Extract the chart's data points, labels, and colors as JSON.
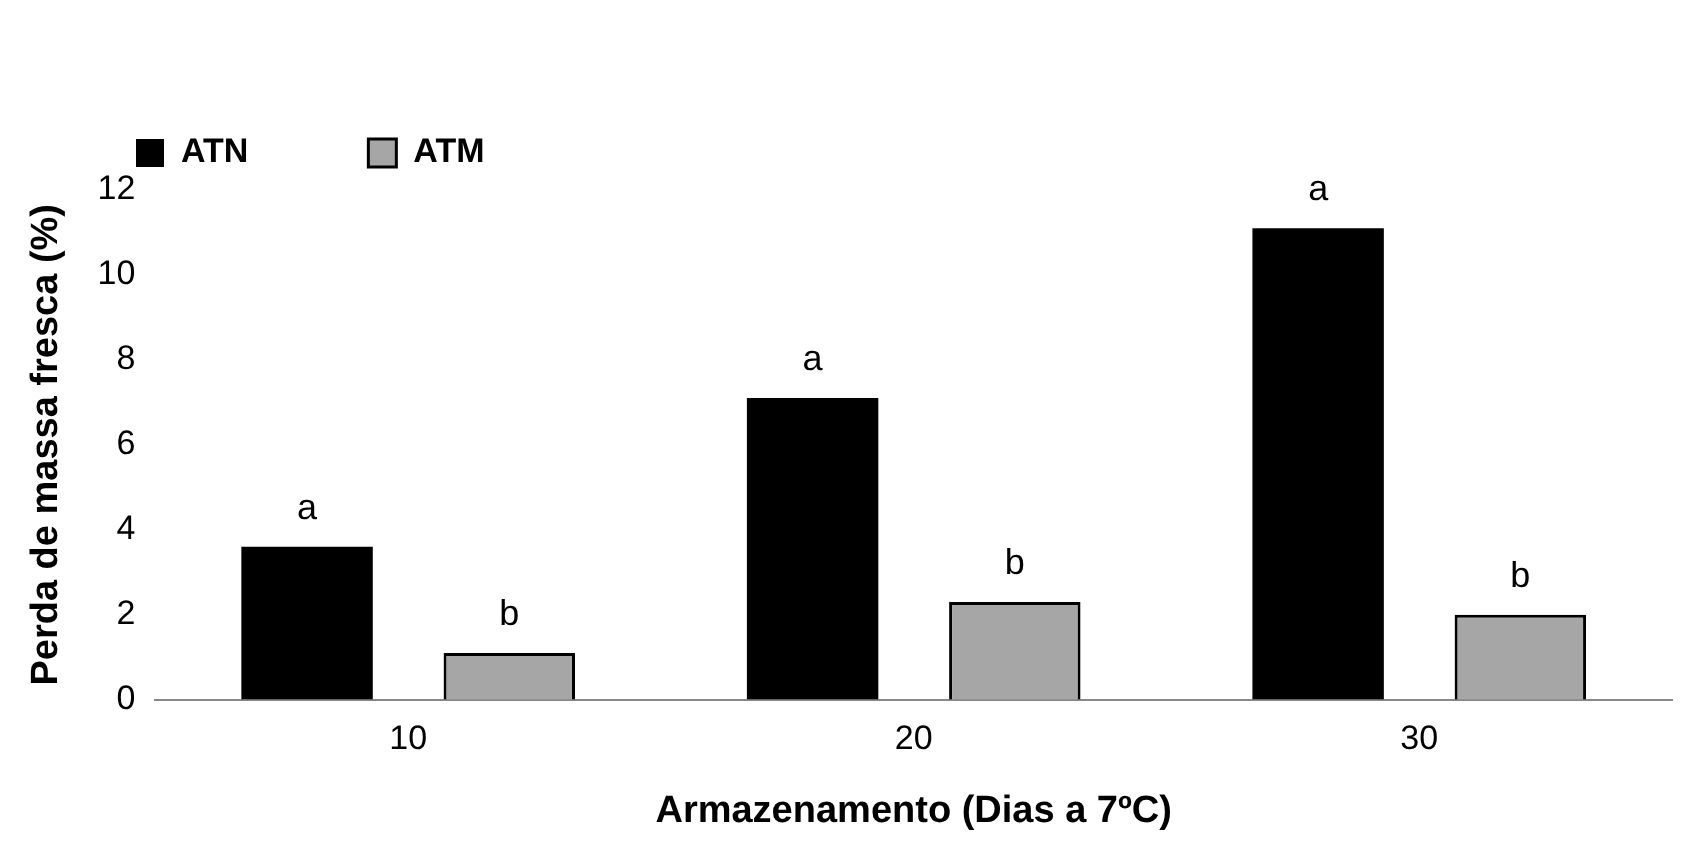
{
  "chart_data": {
    "type": "bar",
    "xlabel": "Armazenamento (Dias a 7ºC)",
    "ylabel": "Perda de massa fresca (%)",
    "categories": [
      "10",
      "20",
      "30"
    ],
    "series": [
      {
        "name": "ATN",
        "color": "#000000",
        "values": [
          3.6,
          7.1,
          11.1
        ]
      },
      {
        "name": "ATM",
        "color": "#a6a6a6",
        "values": [
          1.1,
          2.3,
          2.0
        ]
      }
    ],
    "ylim": [
      0,
      12
    ],
    "yticks": [
      0,
      2,
      4,
      6,
      8,
      10,
      12
    ],
    "grid": false,
    "legend": "top left",
    "annotations": [
      "a",
      "b",
      "a",
      "b",
      "a",
      "b"
    ]
  }
}
